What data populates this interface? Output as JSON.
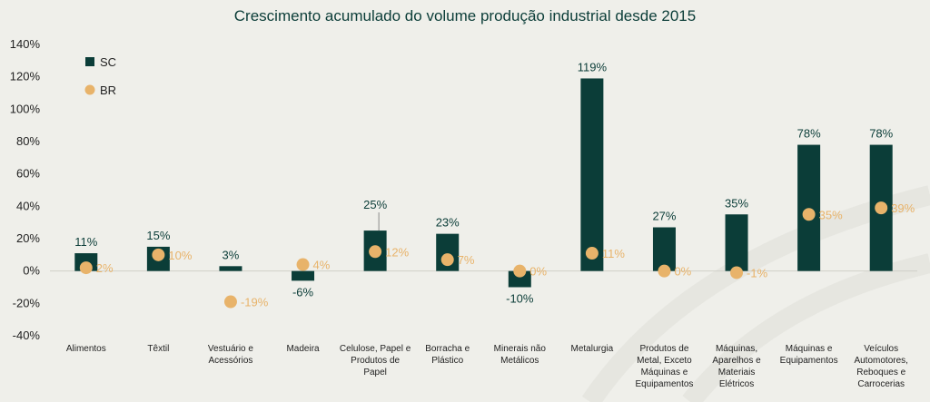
{
  "chart_data": {
    "type": "bar",
    "title": "Crescimento acumulado do volume produção industrial desde 2015",
    "categories": [
      [
        "Alimentos"
      ],
      [
        "Têxtil"
      ],
      [
        "Vestuário e",
        "Acessórios"
      ],
      [
        "Madeira"
      ],
      [
        "Celulose, Papel e",
        "Produtos de",
        "Papel"
      ],
      [
        "Borracha e",
        "Plástico"
      ],
      [
        "Minerais não",
        "Metálicos"
      ],
      [
        "Metalurgia"
      ],
      [
        "Produtos de",
        "Metal, Exceto",
        "Máquinas e",
        "Equipamentos"
      ],
      [
        "Máquinas,",
        "Aparelhos e",
        "Materiais",
        "Elétricos"
      ],
      [
        "Máquinas e",
        "Equipamentos"
      ],
      [
        "Veículos",
        "Automotores,",
        "Reboques e",
        "Carrocerias"
      ]
    ],
    "series": [
      {
        "name": "SC",
        "kind": "bar",
        "color": "#0b3d38",
        "values": [
          11,
          15,
          3,
          -6,
          25,
          23,
          -10,
          119,
          27,
          35,
          78,
          78
        ],
        "labels": [
          "11%",
          "15%",
          "3%",
          "-6%",
          "25%",
          "23%",
          "-10%",
          "119%",
          "27%",
          "35%",
          "78%",
          "78%"
        ]
      },
      {
        "name": "BR",
        "kind": "dot",
        "color": "#e8b36a",
        "values": [
          2,
          10,
          -19,
          4,
          12,
          7,
          0,
          11,
          0,
          -1,
          35,
          39
        ],
        "labels": [
          "2%",
          "10%",
          "-19%",
          "4%",
          "12%",
          "7%",
          "0%",
          "11%",
          "0%",
          "-1%",
          "35%",
          "39%"
        ]
      }
    ],
    "ylim": [
      -40,
      140
    ],
    "yticks": [
      -40,
      -20,
      0,
      20,
      40,
      60,
      80,
      100,
      120,
      140
    ],
    "ytick_labels": [
      "-40%",
      "-20%",
      "0%",
      "20%",
      "40%",
      "60%",
      "80%",
      "100%",
      "120%",
      "140%"
    ],
    "legend": [
      {
        "name": "SC"
      },
      {
        "name": "BR"
      }
    ],
    "legend_position": "top-left"
  }
}
